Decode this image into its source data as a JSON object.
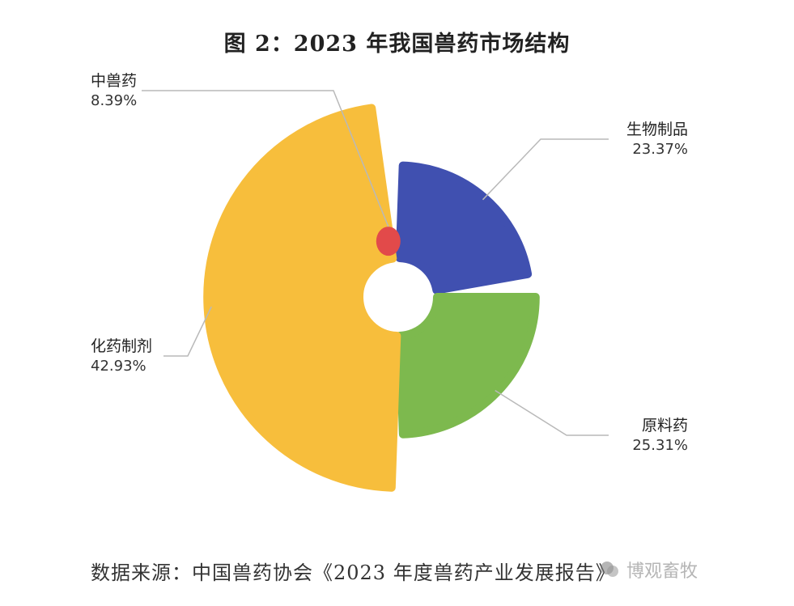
{
  "title": "图 2：2023 年我国兽药市场结构",
  "chart_data": {
    "type": "pie",
    "variant": "rose",
    "title": "图 2：2023 年我国兽药市场结构",
    "unit": "%",
    "slices": [
      {
        "name": "生物制品",
        "value": 23.37,
        "label": "23.37%",
        "color": "#4050B0"
      },
      {
        "name": "原料药",
        "value": 25.31,
        "label": "25.31%",
        "color": "#7DB94E"
      },
      {
        "name": "化药制剂",
        "value": 42.93,
        "label": "42.93%",
        "color": "#F7BE3C"
      },
      {
        "name": "中兽药",
        "value": 8.39,
        "label": "8.39%",
        "color": "#E24A4A"
      }
    ]
  },
  "source": "数据来源：中国兽药协会《2023 年度兽药产业发展报告》",
  "watermark": "博观畜牧"
}
